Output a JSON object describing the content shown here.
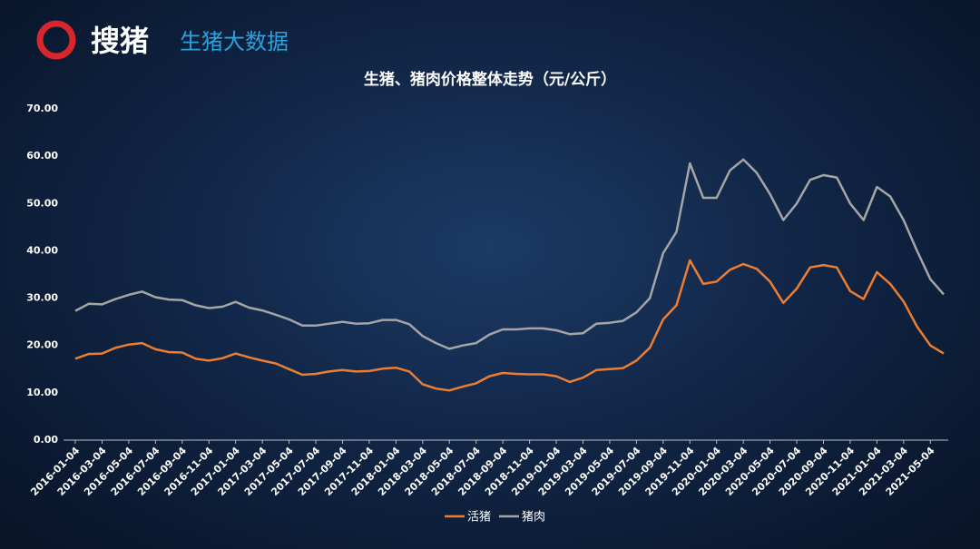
{
  "header": {
    "logo": "搜猪",
    "brand": "生猪大数据"
  },
  "chart_data": {
    "type": "line",
    "title": "生猪、猪肉价格整体走势（元/公斤）",
    "categories": [
      "2016-01-04",
      null,
      "2016-03-04",
      null,
      "2016-05-04",
      null,
      "2016-07-04",
      null,
      "2016-09-04",
      null,
      "2016-11-04",
      null,
      "2017-01-04",
      null,
      "2017-03-04",
      null,
      "2017-05-04",
      null,
      "2017-07-04",
      null,
      "2017-09-04",
      null,
      "2017-11-04",
      null,
      "2018-01-04",
      null,
      "2018-03-04",
      null,
      "2018-05-04",
      null,
      "2018-07-04",
      null,
      "2018-09-04",
      null,
      "2018-11-04",
      null,
      "2019-01-04",
      null,
      "2019-03-04",
      null,
      "2019-05-04",
      null,
      "2019-07-04",
      null,
      "2019-09-04",
      null,
      "2019-11-04",
      null,
      "2020-01-04",
      null,
      "2020-03-04",
      null,
      "2020-05-04",
      null,
      "2020-07-04",
      null,
      "2020-09-04",
      null,
      "2020-11-04",
      null,
      "2021-01-04",
      null,
      "2021-03-04",
      null,
      "2021-05-04",
      null
    ],
    "series": [
      {
        "name": "活猪",
        "color": "#ed7d31",
        "values": [
          17.2,
          18.2,
          18.3,
          19.5,
          20.2,
          20.5,
          19.2,
          18.6,
          18.5,
          17.2,
          16.8,
          17.3,
          18.3,
          17.5,
          16.8,
          16.2,
          15.0,
          13.8,
          14.0,
          14.5,
          14.8,
          14.5,
          14.6,
          15.1,
          15.3,
          14.5,
          11.8,
          10.9,
          10.5,
          11.3,
          12.0,
          13.5,
          14.2,
          14.0,
          13.9,
          13.9,
          13.5,
          12.3,
          13.2,
          14.8,
          15.0,
          15.2,
          16.8,
          19.5,
          25.5,
          28.5,
          38.0,
          33.0,
          33.5,
          36.0,
          37.2,
          36.2,
          33.5,
          29.0,
          32.0,
          36.5,
          37.0,
          36.5,
          31.5,
          29.8,
          35.5,
          33.0,
          29.3,
          24.0,
          20.0,
          18.3
        ]
      },
      {
        "name": "猪肉",
        "color": "#a5a5a5",
        "values": [
          27.3,
          28.8,
          28.7,
          29.8,
          30.7,
          31.4,
          30.2,
          29.7,
          29.6,
          28.5,
          27.9,
          28.2,
          29.2,
          28.0,
          27.4,
          26.5,
          25.5,
          24.2,
          24.2,
          24.6,
          25.0,
          24.6,
          24.7,
          25.4,
          25.4,
          24.5,
          22.0,
          20.5,
          19.3,
          20.0,
          20.5,
          22.3,
          23.4,
          23.4,
          23.6,
          23.6,
          23.2,
          22.4,
          22.6,
          24.6,
          24.8,
          25.2,
          27.0,
          30.0,
          39.5,
          44.0,
          58.5,
          51.2,
          51.2,
          57.0,
          59.3,
          56.5,
          52.0,
          46.5,
          50.0,
          55.0,
          56.0,
          55.5,
          50.0,
          46.5,
          53.5,
          51.5,
          46.5,
          40.0,
          34.0,
          30.8
        ]
      }
    ],
    "ylim": [
      0,
      70
    ],
    "yticks": [
      {
        "value": 0,
        "label": "0.00"
      },
      {
        "value": 10,
        "label": "10.00"
      },
      {
        "value": 20,
        "label": "20.00"
      },
      {
        "value": 30,
        "label": "30.00"
      },
      {
        "value": 40,
        "label": "40.00"
      },
      {
        "value": 50,
        "label": "50.00"
      },
      {
        "value": 60,
        "label": "60.00"
      },
      {
        "value": 70,
        "label": "70.00"
      }
    ],
    "grid": false,
    "legend": "bottom"
  }
}
